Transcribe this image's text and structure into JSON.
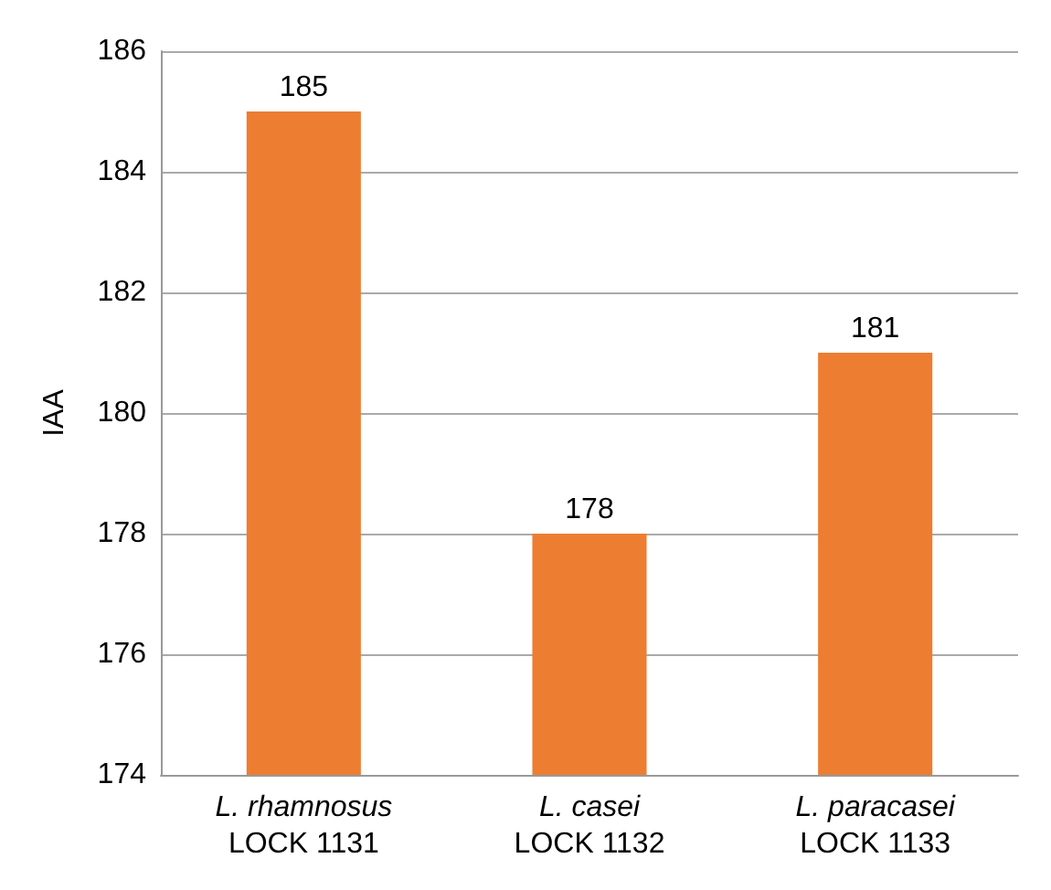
{
  "chart_data": {
    "type": "bar",
    "ylabel": "IAA",
    "categories": [
      "L. rhamnosus\nLOCK 1131",
      "L. casei\nLOCK 1132",
      "L. paracasei\nLOCK 1133"
    ],
    "values": [
      185,
      178,
      181
    ],
    "color": "#ed7d31",
    "ylim": [
      174,
      186
    ],
    "yticks": [
      174,
      176,
      178,
      180,
      182,
      184,
      186
    ],
    "grid": "y",
    "data_labels": true
  }
}
